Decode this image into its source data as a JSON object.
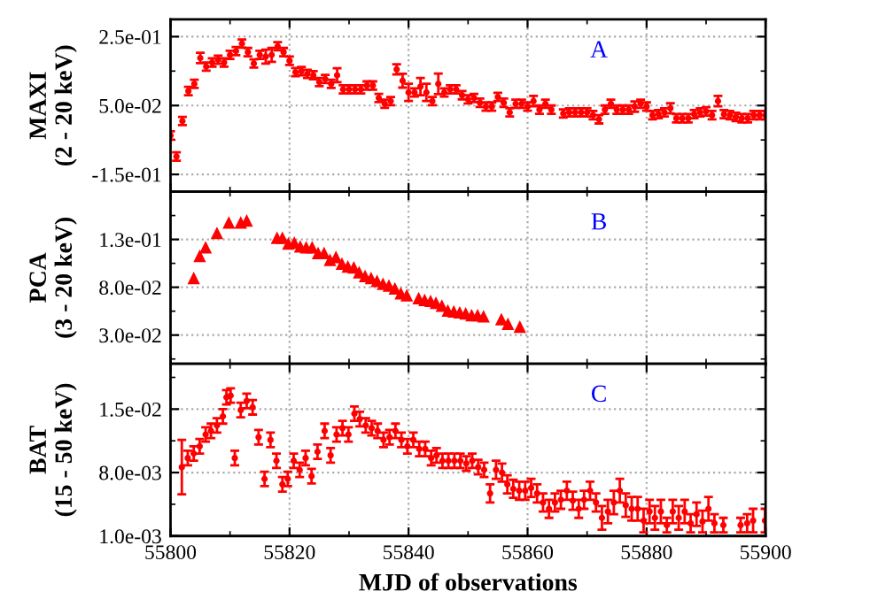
{
  "chart_data": [
    {
      "type": "scatter",
      "ylabel": "MAXI\n(2 - 20 keV)",
      "annotations": [
        "A"
      ],
      "marker": "circle",
      "grid": true,
      "tick_labels": "y",
      "xlim": [
        55800,
        55900
      ],
      "xticks": [
        {
          "value": 55800,
          "label": null
        },
        {
          "value": 55820,
          "label": null
        },
        {
          "value": 55840,
          "label": null
        },
        {
          "value": 55860,
          "label": null
        },
        {
          "value": 55880,
          "label": null
        },
        {
          "value": 55900,
          "label": null
        }
      ],
      "ylim": [
        -0.2,
        0.3
      ],
      "yticks": [
        {
          "value": 0.25,
          "label": "2.5e-01"
        },
        {
          "value": 0.05,
          "label": "5.0e-02"
        },
        {
          "value": -0.15,
          "label": "-1.5e-01"
        }
      ],
      "series": [
        {
          "color": "#ff0000",
          "x": [
            55800,
            55801,
            55802,
            55803,
            55804,
            55805,
            55806,
            55807,
            55808,
            55809,
            55810,
            55811,
            55812,
            55813,
            55814,
            55815,
            55816,
            55817,
            55818,
            55819,
            55820,
            55821,
            55822,
            55823,
            55824,
            55825,
            55826,
            55827,
            55828,
            55829,
            55830,
            55831,
            55832,
            55833,
            55834,
            55835,
            55836,
            55837,
            55838,
            55839,
            55840,
            55841,
            55842,
            55843,
            55844,
            55845,
            55846,
            55847,
            55848,
            55849,
            55850,
            55851,
            55852,
            55853,
            55854,
            55855,
            55856,
            55857,
            55858,
            55859,
            55860,
            55861,
            55862,
            55863,
            55864,
            55866,
            55867,
            55868,
            55869,
            55870,
            55871,
            55872,
            55873,
            55874,
            55875,
            55876,
            55877,
            55878,
            55879,
            55880,
            55881,
            55882,
            55883,
            55884,
            55885,
            55886,
            55887,
            55888,
            55889,
            55890,
            55891,
            55892,
            55893,
            55894,
            55895,
            55896,
            55897,
            55898,
            55899,
            55900
          ],
          "values": [
            -0.037,
            -0.098,
            0.005,
            0.092,
            0.113,
            0.188,
            0.163,
            0.175,
            0.183,
            0.175,
            0.197,
            0.208,
            0.23,
            0.205,
            0.172,
            0.197,
            0.192,
            0.197,
            0.222,
            0.205,
            0.18,
            0.147,
            0.15,
            0.142,
            0.138,
            0.118,
            0.127,
            0.113,
            0.138,
            0.097,
            0.097,
            0.097,
            0.097,
            0.108,
            0.108,
            0.072,
            0.055,
            0.063,
            0.155,
            0.122,
            0.088,
            0.088,
            0.105,
            0.088,
            0.063,
            0.113,
            0.088,
            0.097,
            0.097,
            0.08,
            0.068,
            0.072,
            0.058,
            0.047,
            0.047,
            0.075,
            0.058,
            0.03,
            0.055,
            0.055,
            0.047,
            0.063,
            0.038,
            0.055,
            0.038,
            0.027,
            0.03,
            0.03,
            0.03,
            0.03,
            0.022,
            0.01,
            0.038,
            0.055,
            0.038,
            0.038,
            0.038,
            0.047,
            0.055,
            0.047,
            0.022,
            0.025,
            0.03,
            0.042,
            0.013,
            0.013,
            0.013,
            0.025,
            0.03,
            0.033,
            0.022,
            0.063,
            0.025,
            0.022,
            0.017,
            0.013,
            0.013,
            0.022,
            0.022,
            0.022
          ],
          "errors": [
            0.012,
            0.012,
            0.012,
            0.012,
            0.012,
            0.015,
            0.012,
            0.012,
            0.012,
            0.012,
            0.012,
            0.012,
            0.012,
            0.012,
            0.012,
            0.012,
            0.02,
            0.02,
            0.012,
            0.012,
            0.012,
            0.012,
            0.012,
            0.012,
            0.012,
            0.012,
            0.012,
            0.012,
            0.02,
            0.012,
            0.012,
            0.012,
            0.012,
            0.012,
            0.012,
            0.012,
            0.012,
            0.012,
            0.015,
            0.02,
            0.025,
            0.012,
            0.025,
            0.025,
            0.012,
            0.03,
            0.012,
            0.012,
            0.012,
            0.012,
            0.012,
            0.012,
            0.012,
            0.012,
            0.012,
            0.012,
            0.012,
            0.012,
            0.012,
            0.012,
            0.012,
            0.015,
            0.012,
            0.012,
            0.012,
            0.012,
            0.012,
            0.012,
            0.012,
            0.012,
            0.012,
            0.012,
            0.012,
            0.012,
            0.012,
            0.012,
            0.012,
            0.015,
            0.012,
            0.012,
            0.012,
            0.012,
            0.012,
            0.015,
            0.012,
            0.012,
            0.012,
            0.012,
            0.012,
            0.012,
            0.012,
            0.015,
            0.012,
            0.012,
            0.012,
            0.012,
            0.012,
            0.012,
            0.012,
            0.012
          ]
        }
      ]
    },
    {
      "type": "scatter",
      "ylabel": "PCA\n(3 - 20 keV)",
      "annotations": [
        "B"
      ],
      "marker": "triangle",
      "grid": true,
      "tick_labels": "y",
      "xlim": [
        55800,
        55900
      ],
      "xticks": [
        {
          "value": 55800,
          "label": null
        },
        {
          "value": 55820,
          "label": null
        },
        {
          "value": 55840,
          "label": null
        },
        {
          "value": 55860,
          "label": null
        },
        {
          "value": 55880,
          "label": null
        },
        {
          "value": 55900,
          "label": null
        }
      ],
      "ylim": [
        0,
        0.18
      ],
      "yticks": [
        {
          "value": 0.13,
          "label": "1.3e-01"
        },
        {
          "value": 0.08,
          "label": "8.0e-02"
        },
        {
          "value": 0.03,
          "label": "3.0e-02"
        }
      ],
      "series": [
        {
          "color": "#ff0000",
          "x": [
            55803.9,
            55804.9,
            55805.9,
            55807.8,
            55809.8,
            55811.8,
            55812.8,
            55817.9,
            55818.8,
            55819.8,
            55820.8,
            55821.8,
            55822.8,
            55823.8,
            55824.8,
            55825.8,
            55826.8,
            55827.8,
            55828.8,
            55829.8,
            55830.8,
            55831.7,
            55832.7,
            55833.7,
            55834.7,
            55835.7,
            55836.7,
            55837.7,
            55838.7,
            55839.7,
            55841.7,
            55842.7,
            55843.7,
            55844.6,
            55845.6,
            55846.6,
            55847.6,
            55848.6,
            55849.6,
            55850.6,
            55851.6,
            55852.6,
            55855.6,
            55856.7,
            55858.7
          ],
          "values": [
            0.089,
            0.112,
            0.121,
            0.136,
            0.147,
            0.147,
            0.149,
            0.131,
            0.131,
            0.125,
            0.126,
            0.122,
            0.121,
            0.121,
            0.115,
            0.115,
            0.108,
            0.111,
            0.104,
            0.101,
            0.1,
            0.095,
            0.091,
            0.089,
            0.086,
            0.083,
            0.081,
            0.078,
            0.073,
            0.071,
            0.068,
            0.066,
            0.065,
            0.063,
            0.06,
            0.055,
            0.054,
            0.053,
            0.052,
            0.05,
            0.05,
            0.049,
            0.046,
            0.041,
            0.038
          ]
        }
      ]
    },
    {
      "type": "scatter",
      "ylabel": "BAT\n(15 - 50 keV)",
      "xlabel": "MJD of observations",
      "annotations": [
        "C"
      ],
      "marker": "circle",
      "grid": true,
      "xlim": [
        55800,
        55900
      ],
      "xticks": [
        55800,
        55820,
        55840,
        55860,
        55880,
        55900
      ],
      "ylim": [
        0.001,
        0.02
      ],
      "yticks": [
        {
          "value": 0.015,
          "label": "1.5e-02"
        },
        {
          "value": 0.008,
          "label": "8.0e-03"
        },
        {
          "value": 0.001,
          "label": "1.0e-03"
        }
      ],
      "series": [
        {
          "color": "#ff0000",
          "x": [
            55801.9,
            55802.9,
            55803.9,
            55804.9,
            55805.9,
            55806.8,
            55807.8,
            55808.8,
            55809.4,
            55810.1,
            55810.8,
            55811.8,
            55812.8,
            55813.8,
            55814.8,
            55815.8,
            55816.8,
            55817.8,
            55818.8,
            55819.7,
            55820.7,
            55821.7,
            55822.7,
            55823.7,
            55824.7,
            55825.9,
            55826.9,
            55827.9,
            55828.9,
            55829.9,
            55830.9,
            55831.8,
            55832.8,
            55833.8,
            55834.8,
            55835.8,
            55836.8,
            55837.8,
            55838.8,
            55839.8,
            55840.8,
            55841.8,
            55842.8,
            55843.8,
            55844.7,
            55845.7,
            55846.7,
            55847.7,
            55848.7,
            55849.7,
            55850.7,
            55851.7,
            55852.7,
            55853.7,
            55854.7,
            55855.7,
            55856.6,
            55857.6,
            55858.6,
            55859.6,
            55860.6,
            55861.6,
            55862.6,
            55863.6,
            55864.6,
            55865.6,
            55866.6,
            55867.6,
            55868.6,
            55869.5,
            55870.5,
            55871.5,
            55872.5,
            55873.5,
            55874.5,
            55875.5,
            55876.5,
            55877.5,
            55878.5,
            55879.5,
            55880.5,
            55881.4,
            55882.4,
            55883.4,
            55884.4,
            55885.4,
            55886.4,
            55887.4,
            55888.4,
            55889.4,
            55890.4,
            55891.4,
            55892.9,
            55895.8,
            55896.9,
            55897.9,
            55899.9
          ],
          "values": [
            0.0086,
            0.0096,
            0.0101,
            0.0109,
            0.0122,
            0.0126,
            0.0132,
            0.0142,
            0.0163,
            0.0165,
            0.0096,
            0.0149,
            0.0159,
            0.0152,
            0.0119,
            0.0073,
            0.0116,
            0.0093,
            0.0067,
            0.0073,
            0.0093,
            0.0083,
            0.0096,
            0.0076,
            0.0103,
            0.0126,
            0.0099,
            0.0122,
            0.0129,
            0.0122,
            0.0145,
            0.0139,
            0.0132,
            0.0129,
            0.0126,
            0.0116,
            0.0119,
            0.0126,
            0.0116,
            0.0109,
            0.0116,
            0.0106,
            0.0106,
            0.0096,
            0.0099,
            0.0093,
            0.0093,
            0.0093,
            0.0093,
            0.009,
            0.0093,
            0.0086,
            0.0083,
            0.0057,
            0.0083,
            0.008,
            0.0067,
            0.0062,
            0.006,
            0.006,
            0.0063,
            0.0057,
            0.0047,
            0.004,
            0.0047,
            0.005,
            0.006,
            0.0049,
            0.004,
            0.005,
            0.006,
            0.0047,
            0.003,
            0.0037,
            0.0047,
            0.006,
            0.0044,
            0.004,
            0.004,
            0.0027,
            0.0037,
            0.003,
            0.0037,
            0.0022,
            0.0037,
            0.003,
            0.0037,
            0.0024,
            0.0034,
            0.0026,
            0.004,
            0.0024,
            0.0022,
            0.0022,
            0.0024,
            0.0027,
            0.0027
          ],
          "errors": [
            0.003,
            0.0008,
            0.0008,
            0.0008,
            0.0008,
            0.0008,
            0.0008,
            0.0008,
            0.0008,
            0.0008,
            0.0008,
            0.0008,
            0.0008,
            0.0008,
            0.0008,
            0.0008,
            0.0008,
            0.0008,
            0.0008,
            0.0008,
            0.0008,
            0.0008,
            0.0008,
            0.0008,
            0.0008,
            0.0008,
            0.0008,
            0.0008,
            0.0008,
            0.0008,
            0.0008,
            0.0008,
            0.0008,
            0.0008,
            0.0008,
            0.0008,
            0.0008,
            0.0008,
            0.0008,
            0.0008,
            0.0008,
            0.0008,
            0.0008,
            0.0008,
            0.0008,
            0.0008,
            0.0008,
            0.0008,
            0.0008,
            0.0008,
            0.0008,
            0.0008,
            0.0008,
            0.001,
            0.001,
            0.001,
            0.001,
            0.001,
            0.001,
            0.001,
            0.001,
            0.001,
            0.001,
            0.001,
            0.001,
            0.001,
            0.001,
            0.001,
            0.001,
            0.001,
            0.001,
            0.001,
            0.0013,
            0.0013,
            0.0013,
            0.0013,
            0.0013,
            0.0013,
            0.0013,
            0.0013,
            0.0013,
            0.0013,
            0.0013,
            0.0008,
            0.0013,
            0.0013,
            0.0013,
            0.001,
            0.0013,
            0.0012,
            0.0013,
            0.001,
            0.0008,
            0.0008,
            0.001,
            0.0013,
            0.0013
          ]
        }
      ]
    }
  ]
}
